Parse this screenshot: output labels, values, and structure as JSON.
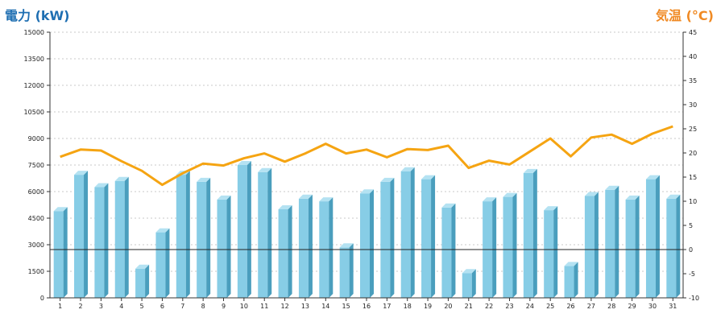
{
  "chart_data": {
    "type": "bar",
    "ylabel_left": "電力 (kW)",
    "ylabel_right": "気温 (°C)",
    "x": [
      1,
      2,
      3,
      4,
      5,
      6,
      7,
      8,
      9,
      10,
      11,
      12,
      13,
      14,
      15,
      16,
      17,
      18,
      19,
      20,
      21,
      22,
      23,
      24,
      25,
      26,
      27,
      28,
      29,
      30,
      31
    ],
    "left_axis": {
      "min": 0,
      "max": 15000,
      "ticks": [
        0,
        1500,
        3000,
        4500,
        6000,
        7500,
        9000,
        10500,
        12000,
        13500,
        15000
      ]
    },
    "right_axis": {
      "min": -10,
      "max": 45,
      "ticks": [
        -10,
        -5,
        0,
        5,
        10,
        15,
        20,
        25,
        30,
        35,
        40,
        45
      ]
    },
    "series": [
      {
        "type": "bar",
        "axis": "left",
        "values": [
          4900,
          6950,
          6250,
          6600,
          1650,
          3700,
          6950,
          6550,
          5550,
          7500,
          7100,
          5000,
          5600,
          5450,
          2850,
          5900,
          6550,
          7150,
          6700,
          5100,
          1400,
          5450,
          5700,
          7050,
          4950,
          1800,
          5750,
          6100,
          5550,
          6700,
          5600
        ]
      },
      {
        "type": "line",
        "axis": "right",
        "values": [
          19.2,
          20.7,
          20.5,
          18.3,
          16.3,
          13.4,
          15.8,
          17.8,
          17.4,
          18.9,
          19.9,
          18.2,
          19.9,
          21.9,
          19.9,
          20.7,
          19.1,
          20.8,
          20.6,
          21.5,
          16.9,
          18.4,
          17.6,
          20.3,
          23.0,
          19.3,
          23.2,
          23.8,
          21.9,
          24.0,
          25.5
        ]
      }
    ],
    "reference_line": {
      "axis": "right",
      "value": 0
    },
    "colors": {
      "bar_face": "#87cde6",
      "bar_side": "#4a9ebd",
      "bar_top": "#b4e2f2",
      "line": "#f5a412",
      "axis_left_label": "#1f6fb2",
      "axis_right_label": "#f08a24"
    },
    "grid": true
  }
}
